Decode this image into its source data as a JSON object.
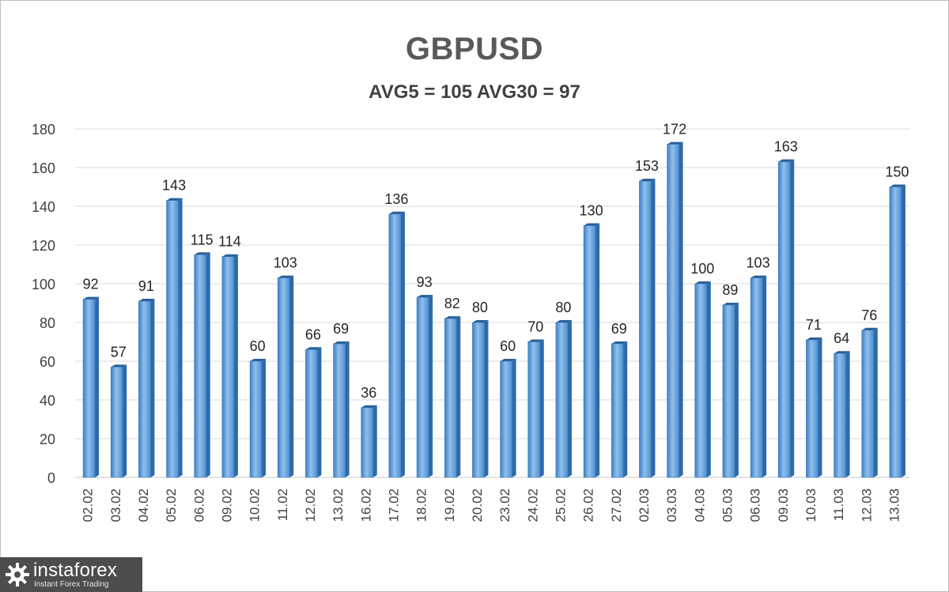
{
  "chart_data": {
    "type": "bar",
    "title": "GBPUSD",
    "subtitle": "AVG5 = 105 AVG30 = 97",
    "categories": [
      "02.02",
      "03.02",
      "04.02",
      "05.02",
      "06.02",
      "09.02",
      "10.02",
      "11.02",
      "12.02",
      "13.02",
      "16.02",
      "17.02",
      "18.02",
      "19.02",
      "20.02",
      "23.02",
      "24.02",
      "25.02",
      "26.02",
      "27.02",
      "02.03",
      "03.03",
      "04.03",
      "05.03",
      "06.03",
      "09.03",
      "10.03",
      "11.03",
      "12.03",
      "13.03"
    ],
    "values": [
      92,
      57,
      91,
      143,
      115,
      114,
      60,
      103,
      66,
      69,
      36,
      136,
      93,
      82,
      80,
      60,
      70,
      80,
      130,
      69,
      153,
      172,
      100,
      89,
      103,
      163,
      71,
      64,
      76,
      150
    ],
    "ylim": [
      0,
      180
    ],
    "yticks": [
      0,
      20,
      40,
      60,
      80,
      100,
      120,
      140,
      160,
      180
    ],
    "grid": true,
    "bar_color": "#5b9bd5"
  },
  "logo": {
    "name": "instaforex",
    "tagline": "Instant Forex Trading"
  }
}
